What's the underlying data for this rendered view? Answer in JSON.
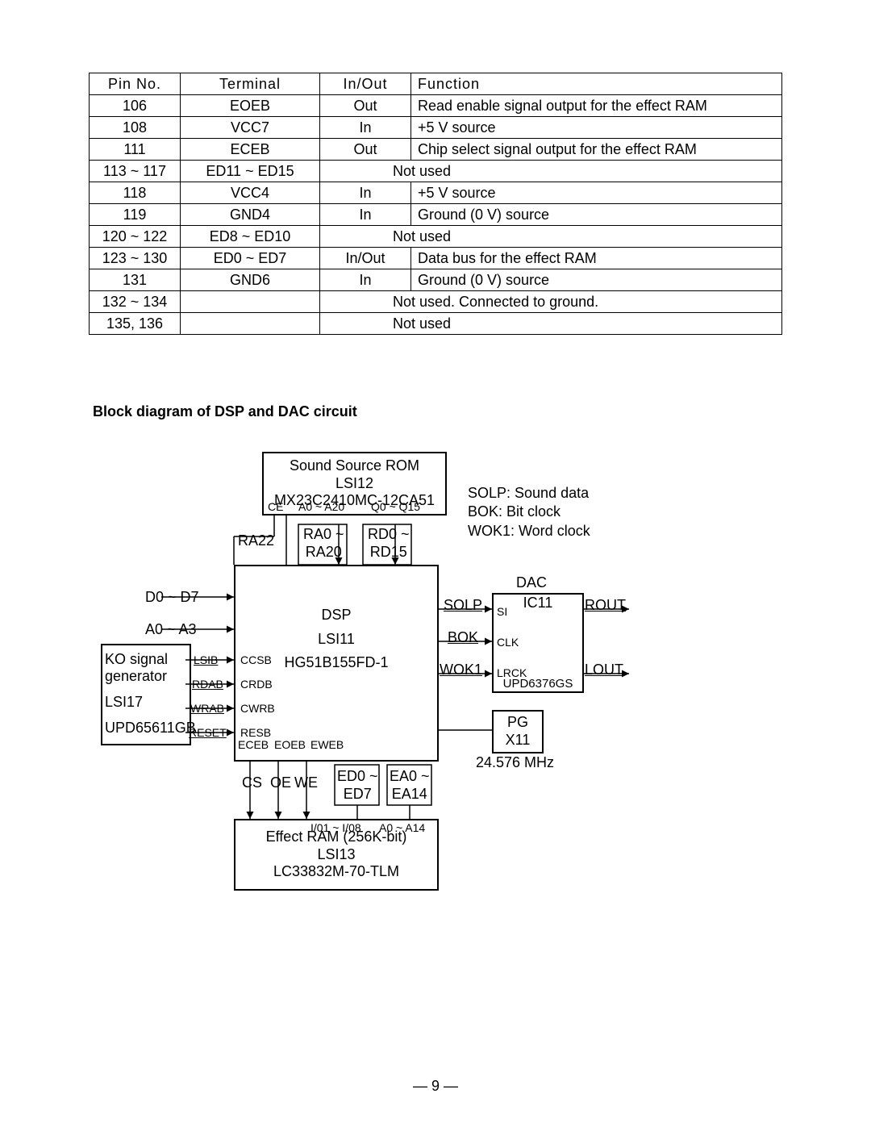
{
  "table": {
    "headers": [
      "Pin  No.",
      "Terminal",
      "In/Out",
      "Function"
    ],
    "rows": [
      {
        "pin": "106",
        "term": "EOEB",
        "io": "Out",
        "func": "Read enable signal output for the effect RAM",
        "span": false
      },
      {
        "pin": "108",
        "term": "VCC7",
        "io": "In",
        "func": "+5 V source",
        "span": false
      },
      {
        "pin": "111",
        "term": "ECEB",
        "io": "Out",
        "func": "Chip select signal output for the effect RAM",
        "span": false
      },
      {
        "pin": "113 ~ 117",
        "term": "ED11 ~ ED15",
        "io": "",
        "func": "Not used",
        "span": true
      },
      {
        "pin": "118",
        "term": "VCC4",
        "io": "In",
        "func": "+5 V source",
        "span": false
      },
      {
        "pin": "119",
        "term": "GND4",
        "io": "In",
        "func": "Ground (0 V) source",
        "span": false
      },
      {
        "pin": "120 ~ 122",
        "term": "ED8 ~ ED10",
        "io": "",
        "func": "Not used",
        "span": true
      },
      {
        "pin": "123 ~ 130",
        "term": "ED0 ~ ED7",
        "io": "In/Out",
        "func": "Data bus for the effect RAM",
        "span": false
      },
      {
        "pin": "131",
        "term": "GND6",
        "io": "In",
        "func": "Ground (0 V) source",
        "span": false
      },
      {
        "pin": "132 ~ 134",
        "term": "",
        "io": "",
        "func": "Not used.  Connected to ground.",
        "span": true
      },
      {
        "pin": "135, 136",
        "term": "",
        "io": "",
        "func": "Not used",
        "span": true
      }
    ]
  },
  "heading": "Block diagram of  DSP and DAC circuit",
  "diagram": {
    "rom": {
      "l1": "Sound Source ROM",
      "l2": "LSI12",
      "l3": "MX23C2410MC-12CA51",
      "s1": "CE",
      "s2": "A0 ~ A20",
      "s3": "Q0 ~ Q15"
    },
    "dsp": {
      "l1": "DSP",
      "l2": "LSI11",
      "l3": "HG51B155FD-1",
      "p1": "CCSB",
      "p2": "CRDB",
      "p3": "CWRB",
      "p4": "RESB",
      "p5": "ECEB",
      "p6": "EOEB",
      "p7": "EWEB"
    },
    "ko": {
      "l1": "KO signal",
      "l2": "generator",
      "l3": "LSI17",
      "l4": "UPD65611GB",
      "a1": "LSIB",
      "a2": "RDAB",
      "a3": "WRAB",
      "a4": "RESET"
    },
    "dac": {
      "l0": "DAC",
      "l1": "IC11",
      "l2": "UPD6376GS",
      "p1": "SI",
      "p2": "CLK",
      "p3": "LRCK"
    },
    "ram": {
      "l1": "Effect RAM (256K-bit)",
      "l2": "LSI13",
      "l3": "LC33832M-70-TLM",
      "s1": "I/01 ~ I/08",
      "s2": "A0 ~ A14"
    },
    "pg": {
      "l1": "PG",
      "l2": "X11",
      "l3": "24.576 MHz"
    },
    "sig": {
      "d07": "D0 ~ D7",
      "a03": "A0 ~ A3",
      "ra22": "RA22",
      "ra020": "RA0 ~\nRA20",
      "rd015": "RD0 ~\nRD15",
      "solp": "SOLP",
      "bok": "BOK",
      "wok1": "WOK1",
      "rout": "ROUT",
      "lout": "LOUT",
      "cs": "CS",
      "oe": "OE",
      "we": "WE",
      "ed07": "ED0 ~\nED7",
      "ea014": "EA0 ~\nEA14"
    },
    "legend": {
      "l1": "SOLP: Sound data",
      "l2": "BOK: Bit clock",
      "l3": "WOK1: Word clock"
    }
  },
  "footer": "— 9 —"
}
